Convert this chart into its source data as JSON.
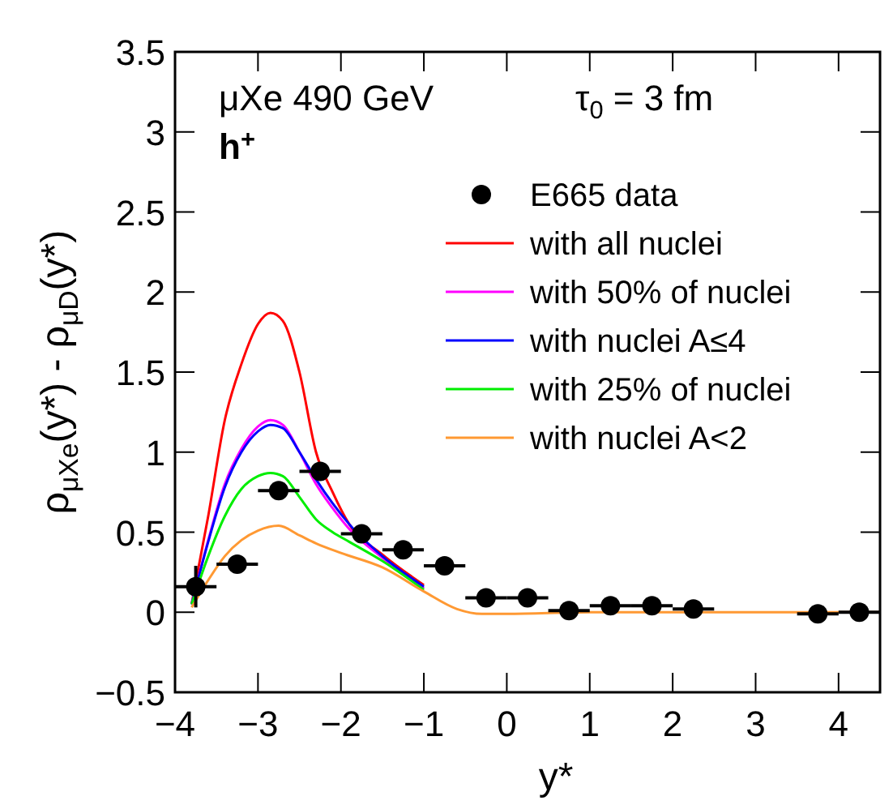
{
  "chart_data": {
    "type": "line",
    "xlabel": "y*",
    "ylabel": "ρ$_{μXe}$(y*) - ρ$_{μD}$(y*)",
    "annotations": [
      "μXe  490 GeV",
      "τ$_{0}$ = 3 fm",
      "h$^{+}$"
    ],
    "xlim": [
      -4,
      4.5
    ],
    "ylim": [
      -0.5,
      3.5
    ],
    "xticks": [
      -4,
      -3,
      -2,
      -1,
      0,
      1,
      2,
      3,
      4
    ],
    "yticks": [
      -0.5,
      0,
      0.5,
      1,
      1.5,
      2,
      2.5,
      3,
      3.5
    ],
    "legend": "top right",
    "grid": false,
    "line_style": "solid",
    "series": [
      {
        "name": "E665 data",
        "type": "scatter",
        "marker": "circle",
        "color": "#000000",
        "x": [
          -3.75,
          -3.25,
          -2.75,
          -2.25,
          -1.75,
          -1.25,
          -0.75,
          -0.25,
          0.25,
          0.75,
          1.25,
          1.75,
          2.25,
          3.75,
          4.25
        ],
        "values": [
          0.16,
          0.3,
          0.76,
          0.88,
          0.49,
          0.39,
          0.29,
          0.09,
          0.09,
          0.01,
          0.04,
          0.04,
          0.02,
          -0.01,
          0
        ],
        "errors": [
          0.13,
          null,
          0.05,
          0.05,
          null,
          null,
          null,
          null,
          null,
          null,
          null,
          null,
          null,
          null,
          null
        ],
        "xerrors": [
          0.25,
          0.25,
          0.25,
          0.25,
          0.25,
          0.25,
          0.25,
          0.25,
          0.25,
          0.25,
          0.25,
          0.25,
          0.25,
          0.25,
          0.25
        ]
      },
      {
        "name": "with all nuclei",
        "color": "#ff0000",
        "x": [
          -3.8,
          -3.6,
          -3.4,
          -3.2,
          -3.0,
          -2.85,
          -2.7,
          -2.5,
          -2.3,
          -2.1,
          -1.9,
          -1.5,
          -1.0
        ],
        "values": [
          0.05,
          0.6,
          1.2,
          1.55,
          1.8,
          1.87,
          1.82,
          1.5,
          1.0,
          0.75,
          0.55,
          0.36,
          0.17
        ]
      },
      {
        "name": "with 50% of nuclei",
        "color": "#ff00ff",
        "x": [
          -3.8,
          -3.6,
          -3.4,
          -3.2,
          -3.0,
          -2.85,
          -2.7,
          -2.5,
          -2.3,
          -2.1,
          -1.9,
          -1.5,
          -1.0
        ],
        "values": [
          0.05,
          0.45,
          0.8,
          1.02,
          1.16,
          1.2,
          1.17,
          1.0,
          0.8,
          0.65,
          0.52,
          0.34,
          0.15
        ]
      },
      {
        "name": "with nuclei A≤4",
        "color": "#0000ff",
        "x": [
          -3.8,
          -3.6,
          -3.4,
          -3.2,
          -3.0,
          -2.85,
          -2.7,
          -2.5,
          -2.3,
          -2.1,
          -1.9,
          -1.5,
          -1.0
        ],
        "values": [
          0.05,
          0.44,
          0.78,
          1.0,
          1.13,
          1.17,
          1.15,
          1.0,
          0.83,
          0.68,
          0.55,
          0.35,
          0.16
        ]
      },
      {
        "name": "with 25% of nuclei",
        "color": "#00ee00",
        "x": [
          -3.8,
          -3.6,
          -3.4,
          -3.2,
          -3.0,
          -2.85,
          -2.7,
          -2.5,
          -2.3,
          -2.1,
          -1.9,
          -1.5,
          -1.0
        ],
        "values": [
          0.05,
          0.35,
          0.6,
          0.77,
          0.85,
          0.87,
          0.85,
          0.72,
          0.58,
          0.5,
          0.44,
          0.32,
          0.14
        ]
      },
      {
        "name": "with nuclei A<2",
        "color": "#ff9933",
        "x": [
          -3.8,
          -3.6,
          -3.4,
          -3.2,
          -3.0,
          -2.75,
          -2.5,
          -2.3,
          -2.0,
          -1.5,
          -1.0,
          -0.6,
          -0.3,
          0,
          1,
          2,
          3,
          4.5
        ],
        "values": [
          0.03,
          0.2,
          0.35,
          0.45,
          0.51,
          0.54,
          0.48,
          0.43,
          0.37,
          0.28,
          0.13,
          0.02,
          -0.01,
          -0.01,
          0,
          0,
          0,
          0
        ]
      }
    ]
  }
}
